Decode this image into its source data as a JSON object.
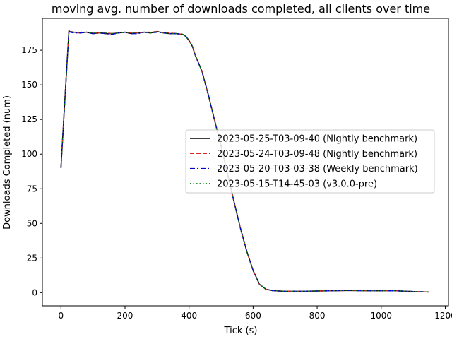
{
  "chart_data": {
    "type": "line",
    "title": "moving avg. number of downloads completed, all clients over time",
    "xlabel": "Tick (s)",
    "ylabel": "Downloads Completed (num)",
    "xlim": [
      -58,
      1210
    ],
    "ylim": [
      -9.5,
      198
    ],
    "xticks": [
      0,
      200,
      400,
      600,
      800,
      1000,
      1200
    ],
    "yticks": [
      0,
      25,
      50,
      75,
      100,
      125,
      150,
      175
    ],
    "grid": false,
    "legend_position": "center-right",
    "x": [
      0,
      10,
      20,
      25,
      30,
      40,
      60,
      80,
      100,
      120,
      140,
      160,
      180,
      200,
      220,
      240,
      260,
      280,
      300,
      320,
      340,
      360,
      380,
      390,
      400,
      410,
      420,
      440,
      460,
      480,
      500,
      520,
      540,
      560,
      580,
      600,
      620,
      640,
      660,
      680,
      700,
      750,
      800,
      850,
      900,
      950,
      1000,
      1050,
      1100,
      1150
    ],
    "series": [
      {
        "name": "2023-05-25-T03-09-40 (Nightly benchmark)",
        "color": "#000000",
        "dash": "solid",
        "values": [
          90,
          130,
          170,
          189,
          188,
          188,
          187.5,
          188,
          187,
          187.5,
          187,
          187,
          187.5,
          188,
          187,
          187.5,
          188,
          187.5,
          188.5,
          187.5,
          187,
          187,
          186.5,
          185,
          182,
          178,
          171,
          160,
          143,
          124,
          106,
          86,
          66,
          47,
          30,
          16,
          6,
          2.5,
          1.5,
          1.2,
          1,
          1,
          1.2,
          1.4,
          1.6,
          1.4,
          1.3,
          1.3,
          0.8,
          0.5
        ]
      },
      {
        "name": "2023-05-24-T03-09-48 (Nightly benchmark)",
        "color": "#d62728",
        "dash": "dashed",
        "values": [
          90,
          131,
          171,
          189.5,
          188.5,
          188,
          187.5,
          188,
          187.5,
          187.5,
          187.5,
          187,
          187.5,
          188,
          187.5,
          187.5,
          188,
          188,
          188.5,
          187.5,
          187.5,
          187,
          186.5,
          185,
          182,
          178,
          171,
          160,
          143,
          124,
          106,
          86,
          66,
          47,
          30,
          16,
          6,
          2.5,
          1.5,
          1.2,
          1,
          1,
          1.2,
          1.4,
          1.6,
          1.4,
          1.3,
          1.3,
          0.8,
          0.5
        ]
      },
      {
        "name": "2023-05-20-T03-03-38 (Weekly benchmark)",
        "color": "#0000cc",
        "dash": "dashdot",
        "values": [
          90,
          130,
          170,
          189,
          188,
          187.5,
          187.5,
          188,
          187,
          187.5,
          187,
          186.5,
          187.5,
          188,
          187,
          187,
          188,
          187.5,
          188,
          187.5,
          187,
          187,
          186.5,
          185,
          182,
          178,
          171,
          160,
          143,
          124,
          106,
          86,
          66,
          47,
          30,
          16,
          6,
          2.5,
          1.5,
          1.2,
          1,
          1,
          1.2,
          1.4,
          1.6,
          1.4,
          1.3,
          1.3,
          0.8,
          0.5
        ]
      },
      {
        "name": "2023-05-15-T14-45-03 (v3.0.0-pre)",
        "color": "#008000",
        "dash": "dotted",
        "values": [
          90,
          130,
          170,
          189,
          188.5,
          188,
          188,
          188,
          187.5,
          187.5,
          187.5,
          187,
          187.5,
          188,
          187.5,
          187.5,
          188,
          187.5,
          188.5,
          187.5,
          187,
          187,
          186.5,
          185,
          182,
          178,
          171,
          160,
          143,
          124,
          106,
          86,
          66,
          47,
          30,
          16,
          6,
          2.5,
          1.5,
          1.2,
          1,
          1,
          1.2,
          1.4,
          1.6,
          1.4,
          1.3,
          1.3,
          0.8,
          0.5
        ]
      }
    ]
  }
}
